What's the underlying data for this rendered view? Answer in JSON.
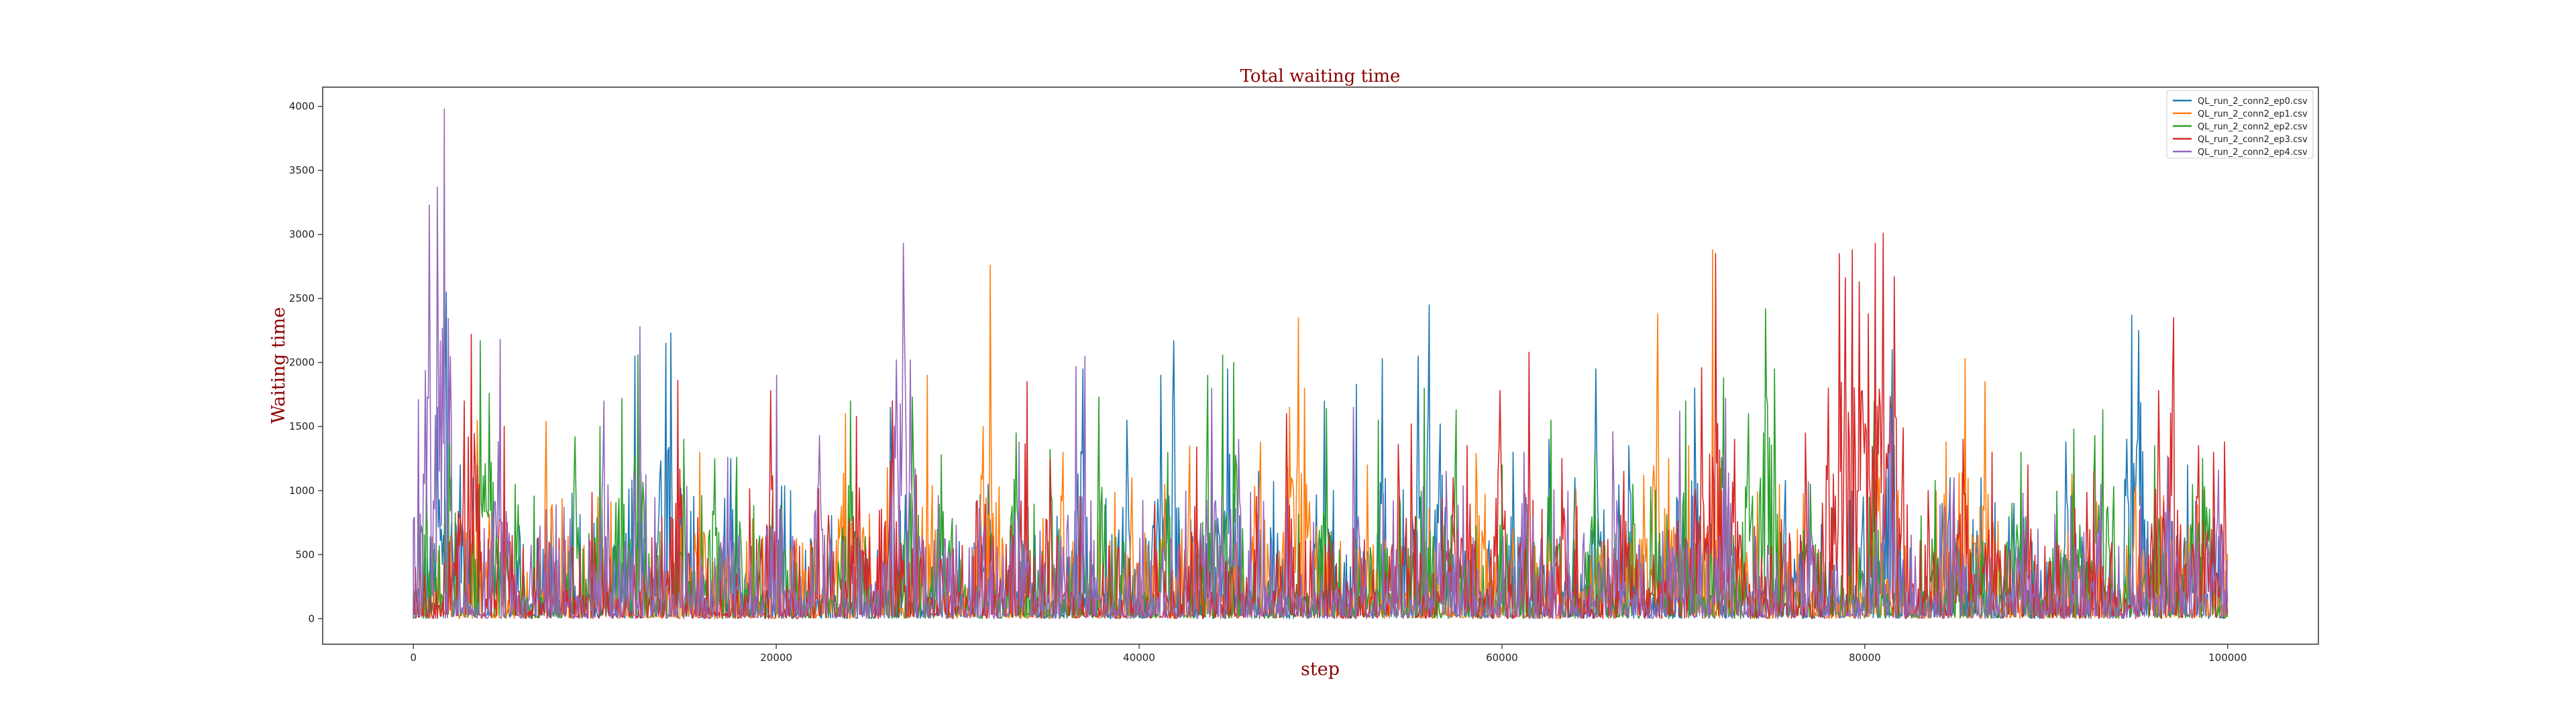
{
  "chart_data": {
    "type": "line",
    "title": "Total waiting time",
    "xlabel": "step",
    "ylabel": "Waiting time",
    "xlim": [
      -5000,
      105000
    ],
    "ylim": [
      -200,
      4150
    ],
    "x_ticks": [
      0,
      20000,
      40000,
      60000,
      80000,
      100000
    ],
    "y_ticks": [
      0,
      500,
      1000,
      1500,
      2000,
      2500,
      3000,
      3500,
      4000
    ],
    "grid": false,
    "legend_position": "top-right",
    "x_range": [
      0,
      100000
    ],
    "series": [
      {
        "name": "QL_run_2_conn2_ep0.csv",
        "color": "#1f77b4",
        "peaks": [
          [
            1300,
            1650
          ],
          [
            1800,
            2550
          ],
          [
            2600,
            1200
          ],
          [
            3300,
            1100
          ],
          [
            12200,
            2050
          ],
          [
            13900,
            2150
          ],
          [
            14200,
            2230
          ],
          [
            17500,
            1250
          ],
          [
            20800,
            1000
          ],
          [
            26300,
            1650
          ],
          [
            31700,
            1050
          ],
          [
            36900,
            1950
          ],
          [
            39300,
            1550
          ],
          [
            41200,
            1900
          ],
          [
            41900,
            2170
          ],
          [
            44900,
            1950
          ],
          [
            46600,
            1150
          ],
          [
            47400,
            1070
          ],
          [
            50200,
            1700
          ],
          [
            50700,
            1000
          ],
          [
            52000,
            1830
          ],
          [
            53400,
            2030
          ],
          [
            55400,
            2050
          ],
          [
            56000,
            2450
          ],
          [
            56600,
            1520
          ],
          [
            60600,
            1300
          ],
          [
            62600,
            1400
          ],
          [
            64000,
            1100
          ],
          [
            65200,
            1950
          ],
          [
            67000,
            1350
          ],
          [
            70600,
            1800
          ],
          [
            75600,
            1080
          ],
          [
            79900,
            950
          ],
          [
            81500,
            2100
          ],
          [
            84700,
            1100
          ],
          [
            86400,
            1100
          ],
          [
            88200,
            900
          ],
          [
            91100,
            1380
          ],
          [
            94700,
            2370
          ],
          [
            95100,
            2250
          ],
          [
            97800,
            1200
          ]
        ]
      },
      {
        "name": "QL_run_2_conn2_ep1.csv",
        "color": "#ff7f0e",
        "peaks": [
          [
            3500,
            1550
          ],
          [
            7300,
            1540
          ],
          [
            10200,
            950
          ],
          [
            15800,
            1300
          ],
          [
            23800,
            1600
          ],
          [
            26100,
            1180
          ],
          [
            28300,
            1900
          ],
          [
            31400,
            1500
          ],
          [
            31800,
            2760
          ],
          [
            35800,
            1300
          ],
          [
            39600,
            1100
          ],
          [
            41400,
            1050
          ],
          [
            42800,
            1350
          ],
          [
            46700,
            1380
          ],
          [
            48300,
            1650
          ],
          [
            48800,
            2350
          ],
          [
            49100,
            1800
          ],
          [
            52600,
            1200
          ],
          [
            58600,
            1290
          ],
          [
            64100,
            1010
          ],
          [
            67800,
            1120
          ],
          [
            68600,
            2380
          ],
          [
            69200,
            1250
          ],
          [
            70300,
            1350
          ],
          [
            71600,
            2880
          ],
          [
            75300,
            1050
          ],
          [
            80700,
            1580
          ],
          [
            84500,
            1380
          ],
          [
            85500,
            2030
          ],
          [
            86600,
            1850
          ],
          [
            91400,
            1130
          ],
          [
            94900,
            950
          ]
        ]
      },
      {
        "name": "QL_run_2_conn2_ep2.csv",
        "color": "#2ca02c",
        "peaks": [
          [
            700,
            1200
          ],
          [
            2000,
            1600
          ],
          [
            3700,
            2170
          ],
          [
            4200,
            1760
          ],
          [
            5600,
            1050
          ],
          [
            8900,
            1420
          ],
          [
            10300,
            1500
          ],
          [
            11500,
            1720
          ],
          [
            12400,
            2060
          ],
          [
            14900,
            1400
          ],
          [
            16600,
            1250
          ],
          [
            17800,
            1260
          ],
          [
            20000,
            1700
          ],
          [
            24100,
            1700
          ],
          [
            27500,
            1730
          ],
          [
            29100,
            1280
          ],
          [
            33200,
            1450
          ],
          [
            35100,
            1320
          ],
          [
            37800,
            1730
          ],
          [
            41600,
            1300
          ],
          [
            43800,
            1900
          ],
          [
            44600,
            2060
          ],
          [
            45200,
            2000
          ],
          [
            50300,
            1640
          ],
          [
            53200,
            1550
          ],
          [
            55700,
            1800
          ],
          [
            57500,
            1630
          ],
          [
            60000,
            1200
          ],
          [
            62700,
            1550
          ],
          [
            65100,
            1300
          ],
          [
            67200,
            1050
          ],
          [
            70100,
            1700
          ],
          [
            72200,
            1880
          ],
          [
            73600,
            1600
          ],
          [
            74500,
            2420
          ],
          [
            75000,
            1950
          ],
          [
            77000,
            1050
          ],
          [
            80500,
            1700
          ],
          [
            83900,
            1080
          ],
          [
            88600,
            1300
          ],
          [
            91500,
            1480
          ],
          [
            92700,
            1430
          ],
          [
            93100,
            1630
          ],
          [
            96000,
            1350
          ],
          [
            98600,
            1250
          ]
        ]
      },
      {
        "name": "QL_run_2_conn2_ep3.csv",
        "color": "#d62728",
        "peaks": [
          [
            2800,
            1700
          ],
          [
            3200,
            2220
          ],
          [
            5000,
            1500
          ],
          [
            14600,
            1860
          ],
          [
            19700,
            1780
          ],
          [
            24400,
            1580
          ],
          [
            26400,
            1700
          ],
          [
            27700,
            1120
          ],
          [
            33800,
            1850
          ],
          [
            35100,
            1250
          ],
          [
            43200,
            1340
          ],
          [
            48100,
            1600
          ],
          [
            54300,
            1360
          ],
          [
            55000,
            1520
          ],
          [
            57300,
            1100
          ],
          [
            58100,
            1350
          ],
          [
            59900,
            1780
          ],
          [
            61500,
            2080
          ],
          [
            63300,
            1250
          ],
          [
            66700,
            1150
          ],
          [
            71000,
            1960
          ],
          [
            71800,
            2850
          ],
          [
            72800,
            1400
          ],
          [
            76700,
            1450
          ],
          [
            78000,
            1800
          ],
          [
            78600,
            2850
          ],
          [
            78900,
            2660
          ],
          [
            79300,
            2880
          ],
          [
            79700,
            2630
          ],
          [
            80200,
            2380
          ],
          [
            80600,
            2930
          ],
          [
            81000,
            3010
          ],
          [
            81600,
            2670
          ],
          [
            82100,
            1490
          ],
          [
            83500,
            1000
          ],
          [
            85400,
            1400
          ],
          [
            87000,
            1300
          ],
          [
            89000,
            1200
          ],
          [
            92600,
            1150
          ],
          [
            96200,
            1780
          ],
          [
            97000,
            2350
          ],
          [
            98400,
            1350
          ],
          [
            99200,
            1300
          ],
          [
            99800,
            1380
          ]
        ]
      },
      {
        "name": "QL_run_2_conn2_ep4.csv",
        "color": "#9467bd",
        "peaks": [
          [
            300,
            1710
          ],
          [
            900,
            3230
          ],
          [
            1300,
            3370
          ],
          [
            1700,
            3980
          ],
          [
            4800,
            2180
          ],
          [
            10500,
            1700
          ],
          [
            12500,
            2280
          ],
          [
            17300,
            1260
          ],
          [
            20000,
            1900
          ],
          [
            22400,
            1430
          ],
          [
            26600,
            2020
          ],
          [
            27000,
            2930
          ],
          [
            27400,
            2020
          ],
          [
            33400,
            1380
          ],
          [
            36500,
            1970
          ],
          [
            37000,
            2050
          ],
          [
            44000,
            1800
          ],
          [
            45500,
            1400
          ],
          [
            51800,
            1650
          ],
          [
            56900,
            1150
          ],
          [
            61200,
            1300
          ],
          [
            66100,
            1460
          ],
          [
            69800,
            1620
          ],
          [
            72300,
            1720
          ],
          [
            76900,
            1070
          ],
          [
            81400,
            1640
          ],
          [
            84900,
            1100
          ],
          [
            88700,
            980
          ],
          [
            93000,
            1050
          ],
          [
            96700,
            1270
          ],
          [
            99500,
            1160
          ]
        ]
      }
    ]
  }
}
